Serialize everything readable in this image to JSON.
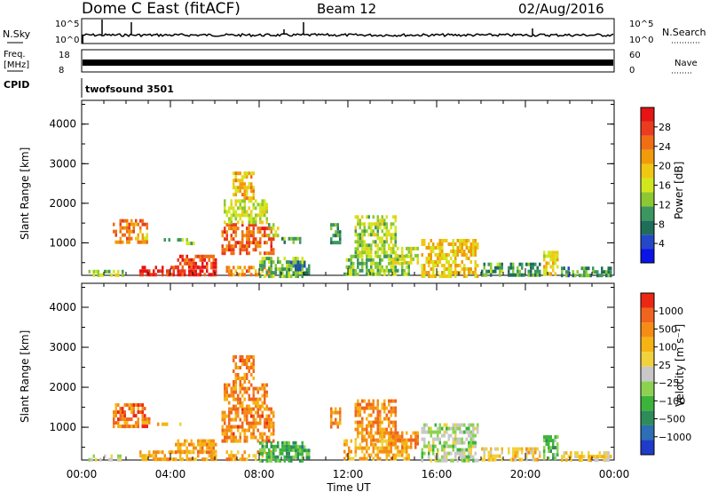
{
  "header": {
    "title": "Dome C East (fitACF)",
    "beam": "Beam 12",
    "date": "02/Aug/2016"
  },
  "panels": {
    "nsky": {
      "label": "N.Sky",
      "tick_top": "10^5",
      "tick_bottom": "10^0"
    },
    "nsearch": {
      "label": "N.Search",
      "tick_top": "10^5",
      "tick_bottom": "10^0"
    },
    "freq": {
      "label_line1": "Freq.",
      "label_line2": "[MHz]",
      "tick_top": "18",
      "tick_bottom": "8"
    },
    "nave": {
      "label": "Nave",
      "tick_top": "60",
      "tick_bottom": "0"
    },
    "cpid": {
      "label": "CPID",
      "value": "twofsound 3501"
    }
  },
  "chart_data": [
    {
      "type": "heatmap",
      "name": "power",
      "ylabel": "Slant Range [km]",
      "yticks": [
        "1000",
        "2000",
        "3000",
        "4000"
      ],
      "ylim": [
        180,
        4600
      ],
      "xlim_hours": [
        0,
        24
      ],
      "colorbar": {
        "label": "Power [dB]",
        "ticks": [
          "4",
          "8",
          "12",
          "16",
          "20",
          "24",
          "28"
        ],
        "colors": [
          "#0a14e6",
          "#2448c8",
          "#1e6e5a",
          "#3c9660",
          "#8cc832",
          "#d2e61e",
          "#f0c814",
          "#f09b0a",
          "#f06e14",
          "#eb3c1e",
          "#e61414"
        ]
      },
      "regions": [
        {
          "x0": 0.3,
          "x1": 1.9,
          "y0": 200,
          "y1": 320,
          "value": 0.45
        },
        {
          "x0": 1.4,
          "x1": 3.0,
          "y0": 1050,
          "y1": 1600,
          "value": 0.75
        },
        {
          "x0": 2.7,
          "x1": 3.1,
          "y0": 1080,
          "y1": 1250,
          "value": 0.55
        },
        {
          "x0": 3.4,
          "x1": 4.6,
          "y0": 1050,
          "y1": 1120,
          "value": 0.4
        },
        {
          "x0": 4.7,
          "x1": 5.1,
          "y0": 1000,
          "y1": 1120,
          "value": 0.45
        },
        {
          "x0": 2.6,
          "x1": 6.1,
          "y0": 200,
          "y1": 420,
          "value": 0.92
        },
        {
          "x0": 4.2,
          "x1": 6.1,
          "y0": 420,
          "y1": 700,
          "value": 0.85
        },
        {
          "x0": 6.3,
          "x1": 8.7,
          "y0": 700,
          "y1": 1500,
          "value": 0.8
        },
        {
          "x0": 6.4,
          "x1": 8.4,
          "y0": 1500,
          "y1": 2100,
          "value": 0.5
        },
        {
          "x0": 6.8,
          "x1": 7.8,
          "y0": 2100,
          "y1": 2800,
          "value": 0.62
        },
        {
          "x0": 8.4,
          "x1": 8.9,
          "y0": 1200,
          "y1": 1500,
          "value": 0.45
        },
        {
          "x0": 6.5,
          "x1": 8.6,
          "y0": 200,
          "y1": 420,
          "value": 0.7
        },
        {
          "x0": 8.0,
          "x1": 10.0,
          "y0": 200,
          "y1": 650,
          "value": 0.4
        },
        {
          "x0": 9.3,
          "x1": 10.3,
          "y0": 250,
          "y1": 550,
          "value": 0.25
        },
        {
          "x0": 9.0,
          "x1": 9.9,
          "y0": 1000,
          "y1": 1150,
          "value": 0.35
        },
        {
          "x0": 11.2,
          "x1": 11.6,
          "y0": 1000,
          "y1": 1500,
          "value": 0.3
        },
        {
          "x0": 12.3,
          "x1": 14.2,
          "y0": 700,
          "y1": 1700,
          "value": 0.45
        },
        {
          "x0": 11.8,
          "x1": 14.8,
          "y0": 200,
          "y1": 700,
          "value": 0.4
        },
        {
          "x0": 13.8,
          "x1": 15.2,
          "y0": 500,
          "y1": 900,
          "value": 0.5
        },
        {
          "x0": 15.3,
          "x1": 17.9,
          "y0": 200,
          "y1": 1100,
          "value": 0.6
        },
        {
          "x0": 18.0,
          "x1": 19.0,
          "y0": 200,
          "y1": 500,
          "value": 0.35
        },
        {
          "x0": 19.2,
          "x1": 20.7,
          "y0": 200,
          "y1": 500,
          "value": 0.3
        },
        {
          "x0": 20.8,
          "x1": 21.5,
          "y0": 200,
          "y1": 800,
          "value": 0.55
        },
        {
          "x0": 21.6,
          "x1": 23.9,
          "y0": 200,
          "y1": 400,
          "value": 0.3
        }
      ]
    },
    {
      "type": "heatmap",
      "name": "velocity",
      "ylabel": "Slant Range [km]",
      "yticks": [
        "1000",
        "2000",
        "3000",
        "4000"
      ],
      "ylim": [
        180,
        4600
      ],
      "xlim_hours": [
        0,
        24
      ],
      "xticks": [
        "00:00",
        "04:00",
        "08:00",
        "12:00",
        "16:00",
        "20:00",
        "00:00"
      ],
      "xlabel": "Time UT",
      "colorbar": {
        "label": "Velocity  [m s⁻¹]",
        "ticks": [
          "1000",
          "500",
          "100",
          "25",
          "−25",
          "−100",
          "−500",
          "−1000"
        ],
        "colors": [
          "#1e3cc8",
          "#2d6eb4",
          "#2d8c5a",
          "#3cb43c",
          "#8cd250",
          "#c8c8c8",
          "#f0d23c",
          "#f5b414",
          "#f58c14",
          "#f0641e",
          "#eb2814"
        ]
      },
      "regions": [
        {
          "x0": 0.3,
          "x1": 1.9,
          "y0": 200,
          "y1": 320,
          "value": 0.55
        },
        {
          "x0": 1.4,
          "x1": 3.0,
          "y0": 1050,
          "y1": 1600,
          "value": 0.82
        },
        {
          "x0": 2.7,
          "x1": 3.1,
          "y0": 1080,
          "y1": 1250,
          "value": 0.78
        },
        {
          "x0": 3.4,
          "x1": 4.6,
          "y0": 1050,
          "y1": 1120,
          "value": 0.7
        },
        {
          "x0": 2.6,
          "x1": 6.1,
          "y0": 200,
          "y1": 420,
          "value": 0.72
        },
        {
          "x0": 4.2,
          "x1": 6.1,
          "y0": 420,
          "y1": 700,
          "value": 0.75
        },
        {
          "x0": 6.3,
          "x1": 8.7,
          "y0": 700,
          "y1": 1500,
          "value": 0.8
        },
        {
          "x0": 6.4,
          "x1": 8.4,
          "y0": 1500,
          "y1": 2100,
          "value": 0.78
        },
        {
          "x0": 6.8,
          "x1": 7.8,
          "y0": 2100,
          "y1": 2800,
          "value": 0.8
        },
        {
          "x0": 6.5,
          "x1": 8.6,
          "y0": 200,
          "y1": 420,
          "value": 0.72
        },
        {
          "x0": 8.0,
          "x1": 10.0,
          "y0": 200,
          "y1": 650,
          "value": 0.32
        },
        {
          "x0": 9.3,
          "x1": 10.3,
          "y0": 250,
          "y1": 550,
          "value": 0.3
        },
        {
          "x0": 11.2,
          "x1": 11.6,
          "y0": 1000,
          "y1": 1500,
          "value": 0.75
        },
        {
          "x0": 12.3,
          "x1": 14.2,
          "y0": 700,
          "y1": 1700,
          "value": 0.78
        },
        {
          "x0": 11.8,
          "x1": 14.8,
          "y0": 200,
          "y1": 700,
          "value": 0.7
        },
        {
          "x0": 13.8,
          "x1": 15.2,
          "y0": 500,
          "y1": 900,
          "value": 0.78
        },
        {
          "x0": 15.3,
          "x1": 17.9,
          "y0": 200,
          "y1": 1100,
          "value": 0.45
        },
        {
          "x0": 18.0,
          "x1": 19.0,
          "y0": 200,
          "y1": 500,
          "value": 0.6
        },
        {
          "x0": 19.2,
          "x1": 20.7,
          "y0": 200,
          "y1": 500,
          "value": 0.62
        },
        {
          "x0": 20.8,
          "x1": 21.5,
          "y0": 200,
          "y1": 800,
          "value": 0.35
        },
        {
          "x0": 21.6,
          "x1": 23.9,
          "y0": 200,
          "y1": 400,
          "value": 0.62
        }
      ]
    }
  ]
}
